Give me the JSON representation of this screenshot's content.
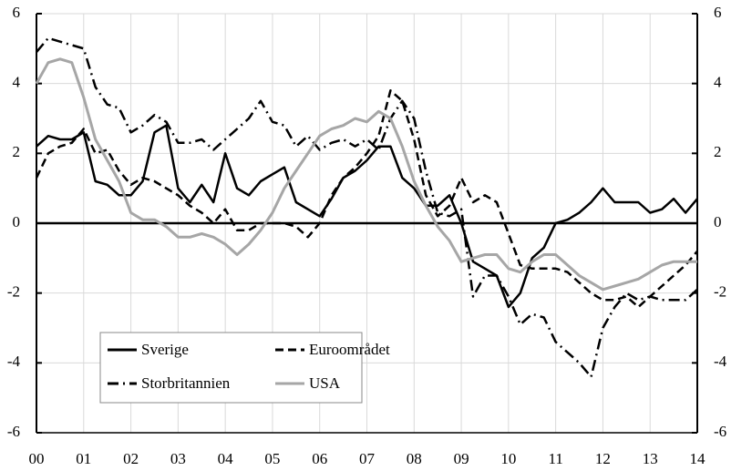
{
  "chart_data": {
    "type": "line",
    "x": [
      0,
      0.25,
      0.5,
      0.75,
      1,
      1.25,
      1.5,
      1.75,
      2,
      2.25,
      2.5,
      2.75,
      3,
      3.25,
      3.5,
      3.75,
      4,
      4.25,
      4.5,
      4.75,
      5,
      5.25,
      5.5,
      5.75,
      6,
      6.25,
      6.5,
      6.75,
      7,
      7.25,
      7.5,
      7.75,
      8,
      8.25,
      8.5,
      8.75,
      9,
      9.25,
      9.5,
      9.75,
      10,
      10.25,
      10.5,
      10.75,
      11,
      11.25,
      11.5,
      11.75,
      12,
      12.25,
      12.5,
      12.75,
      13,
      13.25,
      13.5,
      13.75,
      14
    ],
    "series": [
      {
        "name": "Sverige",
        "color": "#000000",
        "dash": "solid",
        "values": [
          2.2,
          2.5,
          2.4,
          2.4,
          2.6,
          1.2,
          1.1,
          0.8,
          0.8,
          1.2,
          2.6,
          2.8,
          1.0,
          0.6,
          1.1,
          0.6,
          2.0,
          1.0,
          0.8,
          1.2,
          1.4,
          1.6,
          0.6,
          0.4,
          0.2,
          0.7,
          1.3,
          1.5,
          1.8,
          2.2,
          2.2,
          1.3,
          1.0,
          0.5,
          0.5,
          0.8,
          0.0,
          -1.1,
          -1.3,
          -1.5,
          -2.4,
          -2.0,
          -1.0,
          -0.7,
          0.0,
          0.1,
          0.3,
          0.6,
          1.0,
          0.6,
          0.6,
          0.6,
          0.3,
          0.4,
          0.7,
          0.3,
          0.7
        ]
      },
      {
        "name": "Euroområdet",
        "color": "#000000",
        "dash": "dash",
        "values": [
          1.3,
          2.0,
          2.2,
          2.3,
          2.7,
          2.0,
          2.1,
          1.5,
          1.1,
          1.3,
          1.2,
          1.0,
          0.8,
          0.5,
          0.3,
          0.0,
          0.4,
          -0.2,
          -0.2,
          0.0,
          0.0,
          0.0,
          -0.1,
          -0.4,
          0.0,
          0.8,
          1.3,
          1.6,
          2.0,
          2.5,
          3.8,
          3.5,
          2.4,
          0.8,
          0.2,
          0.5,
          1.3,
          0.6,
          0.8,
          0.6,
          -0.3,
          -1.2,
          -1.3,
          -1.3,
          -1.3,
          -1.4,
          -1.7,
          -2.0,
          -2.2,
          -2.2,
          -2.1,
          -2.4,
          -2.1,
          -1.8,
          -1.5,
          -1.2,
          -0.8
        ]
      },
      {
        "name": "Storbritannien",
        "color": "#000000",
        "dash": "dashdot",
        "values": [
          4.9,
          5.3,
          5.2,
          5.1,
          5.0,
          3.9,
          3.4,
          3.3,
          2.6,
          2.8,
          3.1,
          2.9,
          2.3,
          2.3,
          2.4,
          2.1,
          2.4,
          2.7,
          3.0,
          3.5,
          2.9,
          2.8,
          2.2,
          2.5,
          2.1,
          2.3,
          2.4,
          2.2,
          2.4,
          2.1,
          3.0,
          3.5,
          3.0,
          1.5,
          0.3,
          0.2,
          0.4,
          -2.1,
          -1.5,
          -1.5,
          -2.1,
          -2.9,
          -2.6,
          -2.7,
          -3.4,
          -3.7,
          -4.0,
          -4.4,
          -3.0,
          -2.4,
          -2.0,
          -2.2,
          -2.1,
          -2.2,
          -2.2,
          -2.2,
          -1.9
        ]
      },
      {
        "name": "USA",
        "color": "#a6a6a6",
        "dash": "solid",
        "values": [
          4.0,
          4.6,
          4.7,
          4.6,
          3.6,
          2.4,
          1.8,
          1.2,
          0.3,
          0.1,
          0.1,
          -0.1,
          -0.4,
          -0.4,
          -0.3,
          -0.4,
          -0.6,
          -0.9,
          -0.6,
          -0.2,
          0.3,
          1.0,
          1.5,
          2.0,
          2.5,
          2.7,
          2.8,
          3.0,
          2.9,
          3.2,
          3.0,
          2.2,
          1.2,
          0.5,
          -0.1,
          -0.5,
          -1.1,
          -1.0,
          -0.9,
          -0.9,
          -1.3,
          -1.4,
          -1.1,
          -0.9,
          -0.9,
          -1.2,
          -1.5,
          -1.7,
          -1.9,
          -1.8,
          -1.7,
          -1.6,
          -1.4,
          -1.2,
          -1.1,
          -1.1,
          -1.1
        ]
      }
    ],
    "xlim": [
      0,
      14
    ],
    "xticks": [
      {
        "value": 0,
        "label": "00"
      },
      {
        "value": 1,
        "label": "01"
      },
      {
        "value": 2,
        "label": "02"
      },
      {
        "value": 3,
        "label": "03"
      },
      {
        "value": 4,
        "label": "04"
      },
      {
        "value": 5,
        "label": "05"
      },
      {
        "value": 6,
        "label": "06"
      },
      {
        "value": 7,
        "label": "07"
      },
      {
        "value": 8,
        "label": "08"
      },
      {
        "value": 9,
        "label": "09"
      },
      {
        "value": 10,
        "label": "10"
      },
      {
        "value": 11,
        "label": "11"
      },
      {
        "value": 12,
        "label": "12"
      },
      {
        "value": 13,
        "label": "13"
      },
      {
        "value": 14,
        "label": "14"
      }
    ],
    "ylim": [
      -6,
      6
    ],
    "yticks": [
      -6,
      -4,
      -2,
      0,
      2,
      4,
      6
    ],
    "y2lim": [
      -6,
      6
    ],
    "y2ticks": [
      -6,
      -4,
      -2,
      0,
      2,
      4,
      6
    ],
    "grid": true
  }
}
